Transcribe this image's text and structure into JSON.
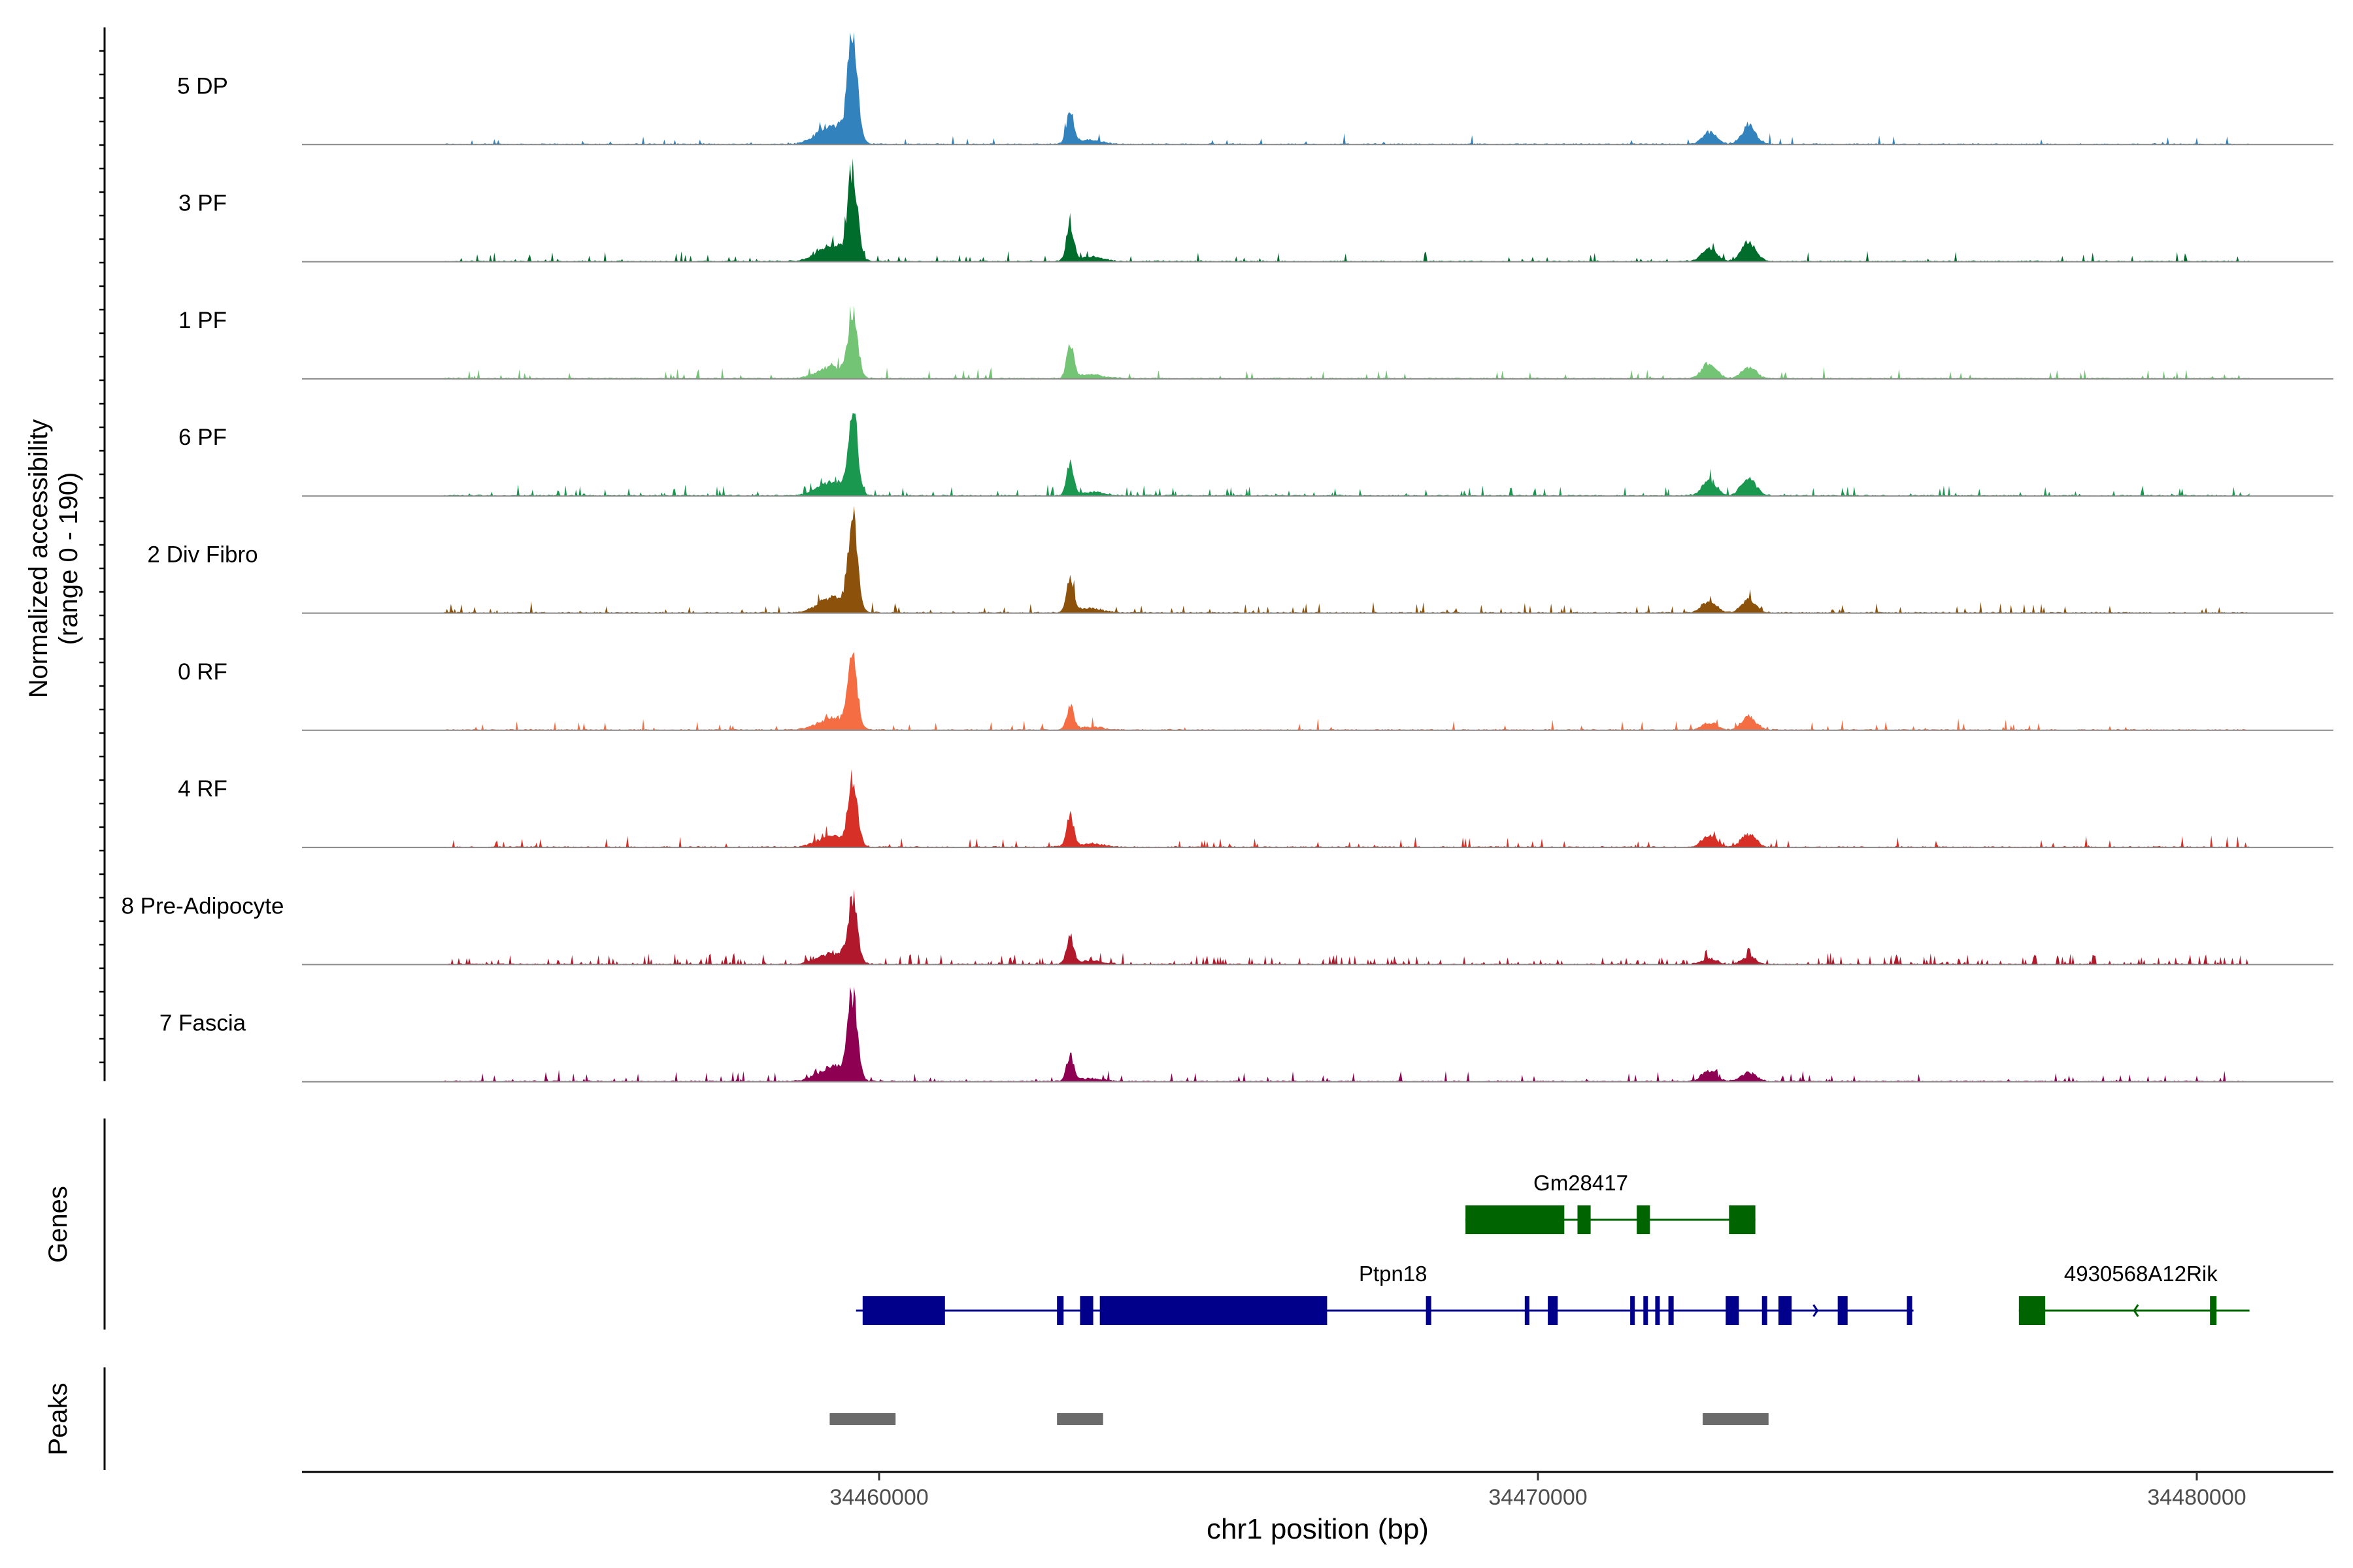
{
  "chart_data": {
    "type": "area",
    "title": "",
    "ylabel_line1": "Normalized accessibility",
    "ylabel_line2": "(range 0 - 190)",
    "xlabel": "chr1 position (bp)",
    "ylim": [
      0,
      190
    ],
    "xlim": [
      34452000,
      34483000
    ],
    "x_ticks": [
      34460000,
      34470000,
      34480000
    ],
    "x_tick_labels": [
      "34460000",
      "34470000",
      "34480000"
    ],
    "region_start": 34453400,
    "region_end": 34480800,
    "peak_positions": [
      34459600,
      34462900,
      34472600,
      34473200
    ],
    "series": [
      {
        "name": "5 DP",
        "color": "#3182BD",
        "peaks": [
          190,
          55,
          20,
          30
        ],
        "noise": 0.03
      },
      {
        "name": "3 PF",
        "color": "#006D2C",
        "peaks": [
          150,
          62,
          22,
          32
        ],
        "noise": 0.05
      },
      {
        "name": "1 PF",
        "color": "#74C476",
        "peaks": [
          110,
          55,
          26,
          20
        ],
        "noise": 0.04
      },
      {
        "name": "6 PF",
        "color": "#1A9850",
        "peaks": [
          130,
          52,
          24,
          30
        ],
        "noise": 0.08
      },
      {
        "name": "2 Div Fibro",
        "color": "#8C510A",
        "peaks": [
          150,
          58,
          20,
          22
        ],
        "noise": 0.05
      },
      {
        "name": "0 RF",
        "color": "#F46D43",
        "peaks": [
          115,
          40,
          12,
          22
        ],
        "noise": 0.03
      },
      {
        "name": "4 RF",
        "color": "#D73027",
        "peaks": [
          105,
          50,
          20,
          22
        ],
        "noise": 0.05
      },
      {
        "name": "8 Pre-Adipocyte",
        "color": "#B2182B",
        "peaks": [
          105,
          45,
          10,
          12
        ],
        "noise": 0.16
      },
      {
        "name": "7 Fascia",
        "color": "#8E0152",
        "peaks": [
          140,
          42,
          18,
          15
        ],
        "noise": 0.07
      }
    ]
  },
  "genes_label": "Genes",
  "peaks_label": "Peaks",
  "genes": [
    {
      "name": "Gm28417",
      "color": "#006400",
      "strand": "-",
      "row": 0,
      "start": 34468900,
      "end": 34473300,
      "exons": [
        [
          34468900,
          34470400
        ],
        [
          34470600,
          34470800
        ],
        [
          34471500,
          34471700
        ],
        [
          34472900,
          34473300
        ]
      ]
    },
    {
      "name": "Ptpn18",
      "color": "#00008B",
      "strand": "+",
      "row": 1,
      "start": 34459650,
      "end": 34475700,
      "exons": [
        [
          34459750,
          34461000
        ],
        [
          34462700,
          34462800
        ],
        [
          34463050,
          34463250
        ],
        [
          34463350,
          34466800
        ],
        [
          34468300,
          34468380
        ],
        [
          34469800,
          34469870
        ],
        [
          34470150,
          34470300
        ],
        [
          34471400,
          34471460
        ],
        [
          34471600,
          34471660
        ],
        [
          34471780,
          34471850
        ],
        [
          34471980,
          34472060
        ],
        [
          34472850,
          34473050
        ],
        [
          34473400,
          34473480
        ],
        [
          34473650,
          34473850
        ],
        [
          34474550,
          34474700
        ],
        [
          34475600,
          34475680
        ]
      ]
    },
    {
      "name": "4930568A12Rik",
      "color": "#006400",
      "strand": "-",
      "row": 1,
      "start": 34477300,
      "end": 34480800,
      "exons": [
        [
          34477300,
          34477700
        ],
        [
          34480200,
          34480300
        ]
      ]
    }
  ],
  "peaks": [
    [
      34459250,
      34460250
    ],
    [
      34462700,
      34463400
    ],
    [
      34472500,
      34473500
    ]
  ]
}
